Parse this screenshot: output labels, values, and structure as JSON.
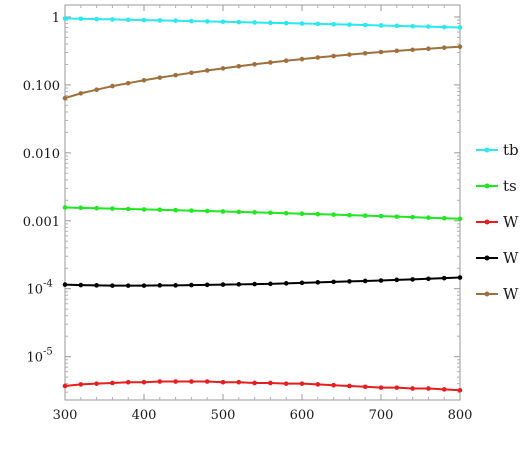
{
  "chart_data": {
    "type": "line",
    "title": "",
    "xlabel": "",
    "ylabel": "",
    "y_scale": "log",
    "xlim": [
      300,
      800
    ],
    "ylim": [
      2.3e-06,
      1.5
    ],
    "legend_position": "right",
    "grid": false,
    "x_ticks": [
      300,
      400,
      500,
      600,
      700,
      800
    ],
    "x_tick_labels": [
      "300",
      "400",
      "500",
      "600",
      "700",
      "800"
    ],
    "y_ticks": [
      {
        "value": 1,
        "label": "1"
      },
      {
        "value": 0.1,
        "label": "0.100"
      },
      {
        "value": 0.01,
        "label": "0.010"
      },
      {
        "value": 0.001,
        "label": "0.001"
      },
      {
        "value": 0.0001,
        "label": "10",
        "exponent": "-4"
      },
      {
        "value": 1e-05,
        "label": "10",
        "exponent": "-5"
      }
    ],
    "x": [
      300,
      320,
      340,
      360,
      380,
      400,
      420,
      440,
      460,
      480,
      500,
      520,
      540,
      560,
      580,
      600,
      620,
      640,
      660,
      680,
      700,
      720,
      740,
      760,
      780,
      800
    ],
    "series": [
      {
        "name": "tb",
        "color": "#29e9f0",
        "values": [
          0.95,
          0.94,
          0.93,
          0.92,
          0.91,
          0.9,
          0.89,
          0.88,
          0.87,
          0.86,
          0.85,
          0.84,
          0.83,
          0.82,
          0.81,
          0.8,
          0.79,
          0.78,
          0.77,
          0.76,
          0.75,
          0.74,
          0.73,
          0.72,
          0.71,
          0.7
        ]
      },
      {
        "name": "ts",
        "color": "#1ee81e",
        "values": [
          0.00157,
          0.00155,
          0.00153,
          0.00151,
          0.00149,
          0.00147,
          0.00145,
          0.00143,
          0.00141,
          0.00139,
          0.00137,
          0.00135,
          0.00133,
          0.00131,
          0.00129,
          0.00127,
          0.00125,
          0.00123,
          0.00121,
          0.00119,
          0.00117,
          0.00115,
          0.00113,
          0.00111,
          0.00109,
          0.00107
        ]
      },
      {
        "name": "W",
        "name_suffix": "γ",
        "color": "#e81e1e",
        "values": [
          3.7e-06,
          3.9e-06,
          4e-06,
          4.1e-06,
          4.2e-06,
          4.2e-06,
          4.3e-06,
          4.3e-06,
          4.3e-06,
          4.3e-06,
          4.2e-06,
          4.2e-06,
          4.1e-06,
          4.1e-06,
          4e-06,
          4e-06,
          3.9e-06,
          3.8e-06,
          3.7e-06,
          3.6e-06,
          3.5e-06,
          3.5e-06,
          3.4e-06,
          3.4e-06,
          3.3e-06,
          3.2e-06
        ]
      },
      {
        "name": "W Z",
        "color": "#000000",
        "values": [
          0.000115,
          0.000113,
          0.000112,
          0.000111,
          0.000111,
          0.000111,
          0.000112,
          0.000112,
          0.000113,
          0.000114,
          0.000115,
          0.000116,
          0.000117,
          0.000118,
          0.00012,
          0.000122,
          0.000124,
          0.000126,
          0.000128,
          0.00013,
          0.000132,
          0.000135,
          0.000137,
          0.00014,
          0.000143,
          0.000146
        ]
      },
      {
        "name": "W h",
        "color": "#a0703c",
        "values": [
          0.064,
          0.075,
          0.085,
          0.096,
          0.106,
          0.117,
          0.128,
          0.139,
          0.151,
          0.163,
          0.175,
          0.188,
          0.201,
          0.214,
          0.227,
          0.24,
          0.253,
          0.266,
          0.279,
          0.292,
          0.305,
          0.317,
          0.329,
          0.341,
          0.353,
          0.365
        ]
      }
    ]
  }
}
